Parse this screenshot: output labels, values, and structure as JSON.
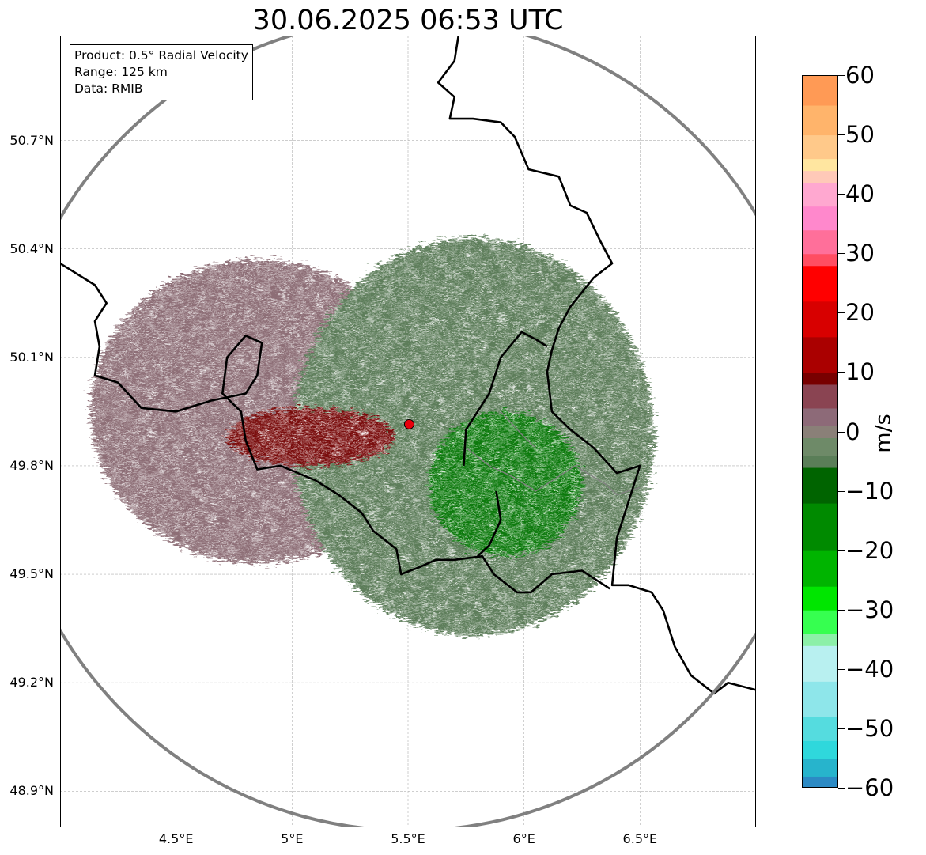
{
  "title": "30.06.2025 06:53 UTC",
  "info": {
    "product": "Product: 0.5° Radial Velocity",
    "range": "Range: 125 km",
    "source": "Data: RMIB"
  },
  "map": {
    "lon_range": [
      4.0,
      7.0
    ],
    "lat_range": [
      48.8,
      50.99
    ],
    "lat_ticks": [
      {
        "value": 50.7,
        "label": "50.7°N"
      },
      {
        "value": 50.4,
        "label": "50.4°N"
      },
      {
        "value": 50.1,
        "label": "50.1°N"
      },
      {
        "value": 49.8,
        "label": "49.8°N"
      },
      {
        "value": 49.5,
        "label": "49.5°N"
      },
      {
        "value": 49.2,
        "label": "49.2°N"
      },
      {
        "value": 48.9,
        "label": "48.9°N"
      }
    ],
    "lon_ticks": [
      {
        "value": 4.5,
        "label": "4.5°E"
      },
      {
        "value": 5.0,
        "label": "5°E"
      },
      {
        "value": 5.5,
        "label": "5.5°E"
      },
      {
        "value": 6.0,
        "label": "6°E"
      },
      {
        "value": 6.5,
        "label": "6.5°E"
      }
    ],
    "radar_site": {
      "lon": 5.505,
      "lat": 49.915,
      "color": "#e8000b"
    },
    "range_km": 125,
    "colors": {
      "range_ring": "#808080",
      "border": "#000000",
      "river": "#808080",
      "grid": "#b0b0b0"
    }
  },
  "colorbar": {
    "unit": "m/s",
    "min": -60,
    "max": 60,
    "ticks": [
      {
        "value": 60,
        "label": "60"
      },
      {
        "value": 50,
        "label": "50"
      },
      {
        "value": 40,
        "label": "40"
      },
      {
        "value": 30,
        "label": "30"
      },
      {
        "value": 20,
        "label": "20"
      },
      {
        "value": 10,
        "label": "10"
      },
      {
        "value": 0,
        "label": "0"
      },
      {
        "value": -10,
        "label": "−10"
      },
      {
        "value": -20,
        "label": "−20"
      },
      {
        "value": -30,
        "label": "−30"
      },
      {
        "value": -40,
        "label": "−40"
      },
      {
        "value": -50,
        "label": "−50"
      },
      {
        "value": -60,
        "label": "−60"
      }
    ],
    "stops": [
      {
        "value": 60,
        "color": "#ff9a55"
      },
      {
        "value": 55,
        "color": "#ffb46b"
      },
      {
        "value": 50,
        "color": "#ffc98a"
      },
      {
        "value": 46,
        "color": "#ffe6a0"
      },
      {
        "value": 44,
        "color": "#ffc9b8"
      },
      {
        "value": 42,
        "color": "#ffa8d0"
      },
      {
        "value": 38,
        "color": "#ff88cc"
      },
      {
        "value": 34,
        "color": "#ff6f9a"
      },
      {
        "value": 30,
        "color": "#ff4d62"
      },
      {
        "value": 28,
        "color": "#ff0000"
      },
      {
        "value": 22,
        "color": "#d80000"
      },
      {
        "value": 16,
        "color": "#aa0000"
      },
      {
        "value": 10,
        "color": "#780000"
      },
      {
        "value": 8,
        "color": "#8a4452"
      },
      {
        "value": 4,
        "color": "#8d6a78"
      },
      {
        "value": 1,
        "color": "#8a8078"
      },
      {
        "value": -1,
        "color": "#6e8a68"
      },
      {
        "value": -4,
        "color": "#5a7e58"
      },
      {
        "value": -6,
        "color": "#006400"
      },
      {
        "value": -12,
        "color": "#008a00"
      },
      {
        "value": -20,
        "color": "#00b400"
      },
      {
        "value": -26,
        "color": "#00e600"
      },
      {
        "value": -30,
        "color": "#36ff50"
      },
      {
        "value": -34,
        "color": "#8cf0a8"
      },
      {
        "value": -36,
        "color": "#b8f0f0"
      },
      {
        "value": -42,
        "color": "#8ee6ea"
      },
      {
        "value": -48,
        "color": "#55dcdf"
      },
      {
        "value": -52,
        "color": "#2fd8dc"
      },
      {
        "value": -55,
        "color": "#27b4cc"
      },
      {
        "value": -58,
        "color": "#2c8ac4"
      },
      {
        "value": -60,
        "color": "#1f77b4"
      }
    ]
  },
  "velocity_regions": [
    {
      "name": "inbound-pink",
      "color": "#8d6e76",
      "lon": 4.85,
      "lat": 49.95,
      "rx_deg": 0.72,
      "ry_deg": 0.42
    },
    {
      "name": "outbound-green",
      "color": "#5d7d5a",
      "lon": 5.78,
      "lat": 49.88,
      "rx_deg": 0.78,
      "ry_deg": 0.55
    },
    {
      "name": "strong-inbound-core",
      "color": "#7a0a0a",
      "lon": 5.08,
      "lat": 49.88,
      "rx_deg": 0.36,
      "ry_deg": 0.08
    },
    {
      "name": "strong-outbound-core",
      "color": "#0a7a0a",
      "lon": 5.92,
      "lat": 49.75,
      "rx_deg": 0.33,
      "ry_deg": 0.2
    }
  ]
}
